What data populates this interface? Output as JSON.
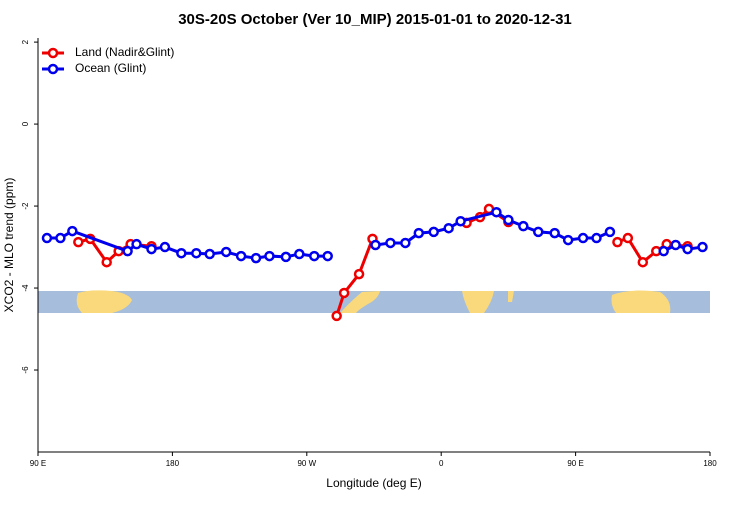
{
  "chart_data": {
    "type": "line",
    "title": "30S-20S October (Ver 10_MIP)   2015-01-01 to 2020-12-31",
    "x_label": "Longitude (deg E)",
    "y_label": "XCO2 - MLO trend (ppm)",
    "xlim": [
      90,
      540
    ],
    "ylim": [
      -8,
      2.1
    ],
    "xticks": [
      {
        "value": 90,
        "label": "90 E"
      },
      {
        "value": 180,
        "label": "180"
      },
      {
        "value": 270,
        "label": "90 W"
      },
      {
        "value": 360,
        "label": "0"
      },
      {
        "value": 450,
        "label": "90 E"
      },
      {
        "value": 540,
        "label": "180"
      }
    ],
    "yticks": [
      2,
      0,
      -2,
      -4,
      -6
    ],
    "legend": "topleft",
    "series": [
      {
        "name": "Land (Nadir&Glint)",
        "color": "#ee0000",
        "x": [
          117,
          125,
          136,
          144,
          152,
          166,
          null,
          290,
          295,
          305,
          314,
          null,
          377,
          386,
          392,
          405,
          null,
          478,
          485,
          495,
          504,
          511,
          525
        ],
        "values": [
          -2.88,
          -2.8,
          -3.37,
          -3.1,
          -2.93,
          -2.98,
          null,
          -4.68,
          -4.12,
          -3.66,
          -2.8,
          null,
          -2.41,
          -2.27,
          -2.07,
          -2.39,
          null,
          -2.88,
          -2.78,
          -3.37,
          -3.1,
          -2.93,
          -2.98
        ]
      },
      {
        "name": "Ocean (Glint)",
        "color": "#0000ee",
        "x": [
          96,
          105,
          113,
          150,
          156,
          166,
          175,
          186,
          196,
          205,
          216,
          226,
          236,
          245,
          256,
          265,
          275,
          284,
          null,
          316,
          326,
          336,
          345,
          355,
          365,
          373,
          397,
          405,
          415,
          425,
          436,
          445,
          455,
          464,
          473,
          null,
          509,
          517,
          525,
          535
        ],
        "values": [
          -2.78,
          -2.78,
          -2.61,
          -3.1,
          -2.93,
          -3.05,
          -3.0,
          -3.15,
          -3.15,
          -3.17,
          -3.12,
          -3.22,
          -3.27,
          -3.22,
          -3.24,
          -3.17,
          -3.22,
          -3.22,
          null,
          -2.95,
          -2.9,
          -2.9,
          -2.66,
          -2.63,
          -2.54,
          -2.37,
          -2.15,
          -2.34,
          -2.49,
          -2.63,
          -2.66,
          -2.83,
          -2.78,
          -2.78,
          -2.63,
          null,
          -3.1,
          -2.95,
          -3.05,
          -3.0
        ]
      }
    ]
  }
}
